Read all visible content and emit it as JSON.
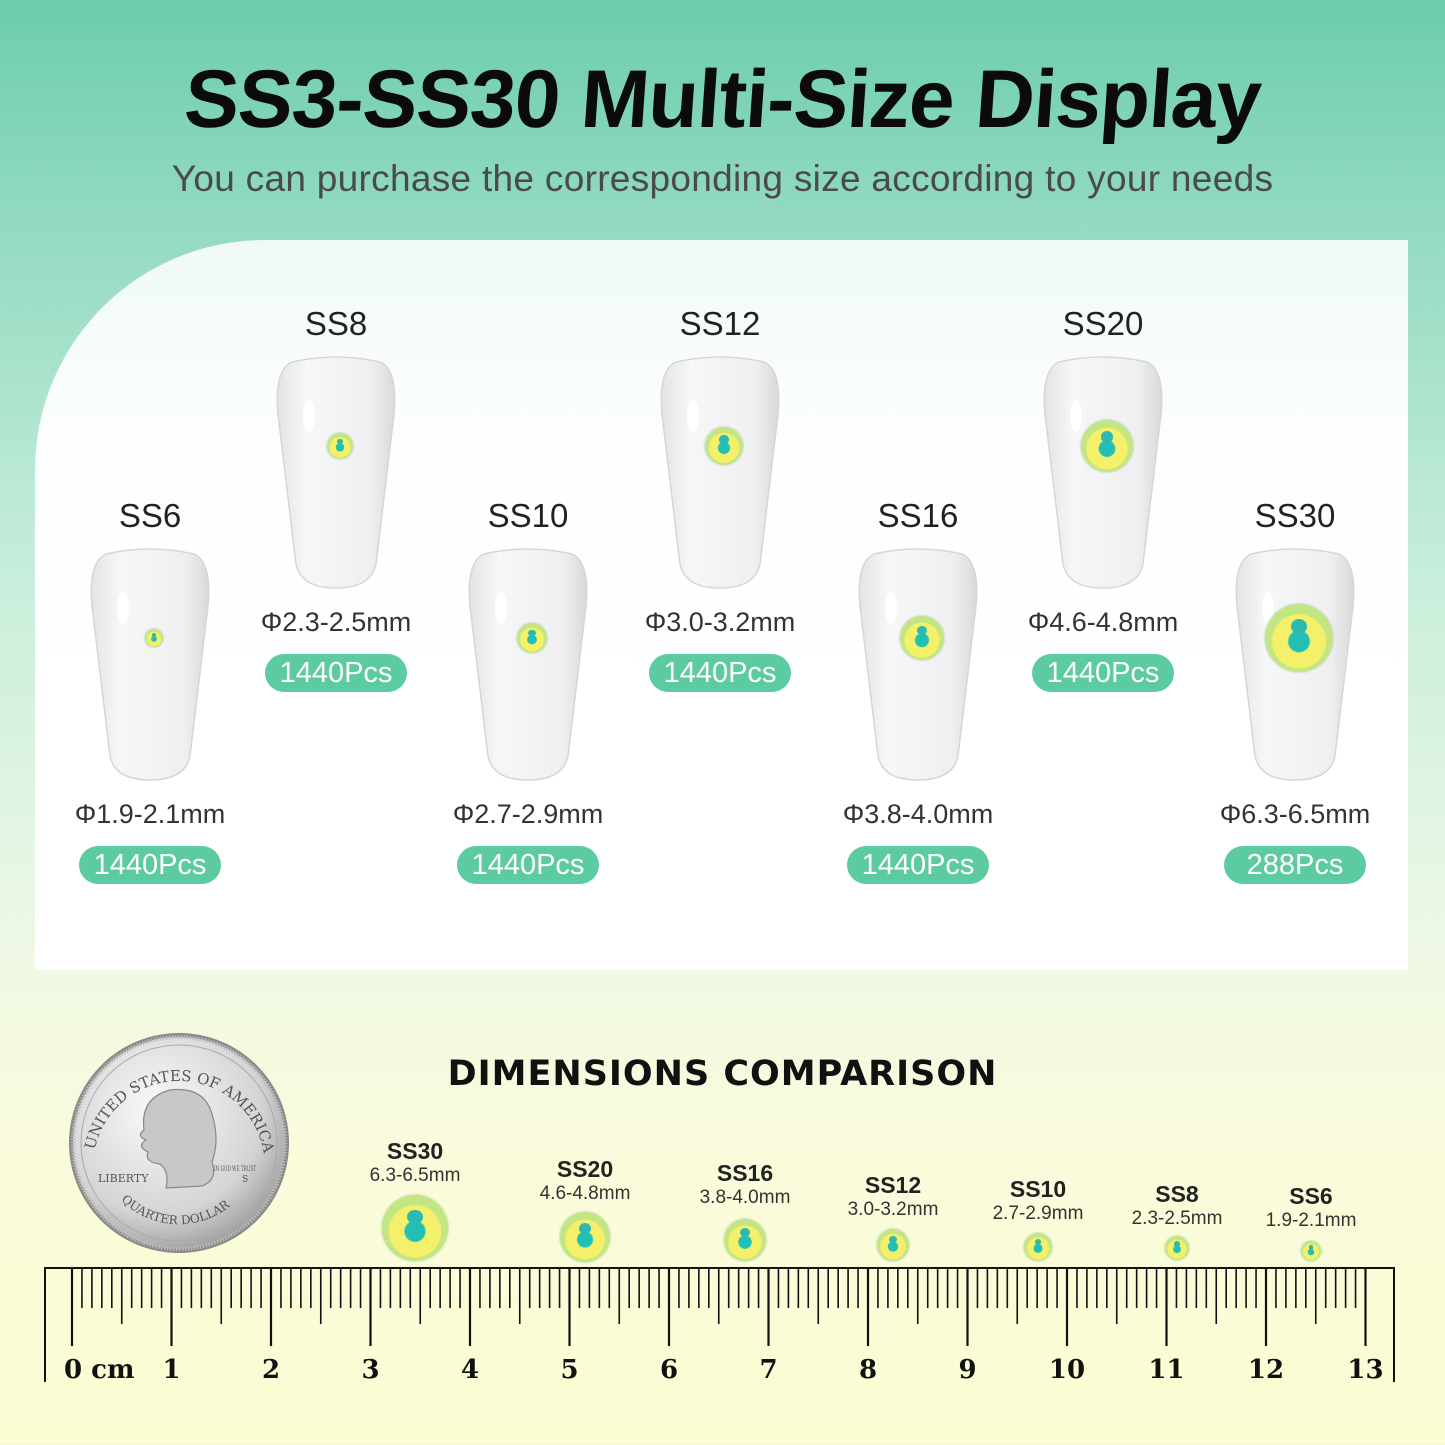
{
  "header": {
    "title": "SS3-SS30 Multi-Size Display",
    "subtitle": "You can purchase the corresponding size according to your needs"
  },
  "items": [
    {
      "name": "SS6",
      "size": "Φ1.9-2.1mm",
      "count": "1440Pcs"
    },
    {
      "name": "SS8",
      "size": "Φ2.3-2.5mm",
      "count": "1440Pcs"
    },
    {
      "name": "SS10",
      "size": "Φ2.7-2.9mm",
      "count": "1440Pcs"
    },
    {
      "name": "SS12",
      "size": "Φ3.0-3.2mm",
      "count": "1440Pcs"
    },
    {
      "name": "SS16",
      "size": "Φ3.8-4.0mm",
      "count": "1440Pcs"
    },
    {
      "name": "SS20",
      "size": "Φ4.6-4.8mm",
      "count": "1440Pcs"
    },
    {
      "name": "SS30",
      "size": "Φ6.3-6.5mm",
      "count": "288Pcs"
    }
  ],
  "comparison": {
    "title": "DIMENSIONS COMPARISON",
    "items": [
      {
        "name": "SS30",
        "size": "6.3-6.5mm"
      },
      {
        "name": "SS20",
        "size": "4.6-4.8mm"
      },
      {
        "name": "SS16",
        "size": "3.8-4.0mm"
      },
      {
        "name": "SS12",
        "size": "3.0-3.2mm"
      },
      {
        "name": "SS10",
        "size": "2.7-2.9mm"
      },
      {
        "name": "SS8",
        "size": "2.3-2.5mm"
      },
      {
        "name": "SS6",
        "size": "1.9-2.1mm"
      }
    ],
    "coin": {
      "top_text": "UNITED STATES OF AMERICA",
      "bottom_text": "QUARTER DOLLAR",
      "left_text": "LIBERTY",
      "motto": "IN GOD WE TRUST",
      "mint": "S"
    },
    "ruler_labels": [
      "0 cm",
      "1",
      "2",
      "3",
      "4",
      "5",
      "6",
      "7",
      "8",
      "9",
      "10",
      "11",
      "12",
      "13"
    ]
  },
  "colors": {
    "pill": "#5ccb9f",
    "accent_green": "#6ccdad",
    "gem_center": "#21bfb4",
    "gem_ring": "#f4f06a"
  }
}
